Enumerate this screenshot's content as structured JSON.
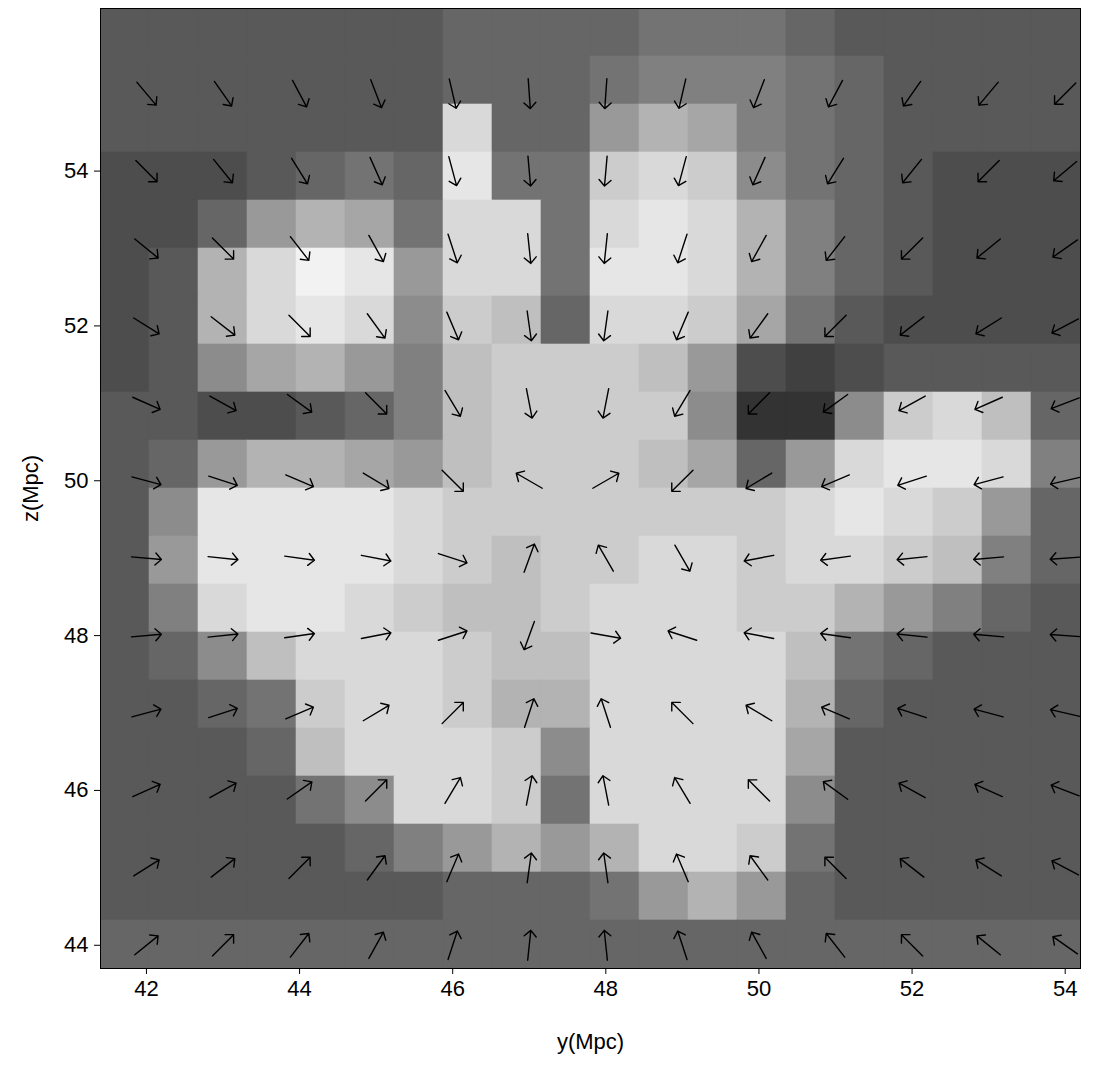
{
  "chart_data": {
    "type": "vector_field",
    "xlabel": "y(Mpc)",
    "ylabel": "z(Mpc)",
    "xlim": [
      41.4,
      54.2
    ],
    "ylim": [
      43.7,
      56.1
    ],
    "xticks": [
      42,
      44,
      46,
      48,
      50,
      52,
      54
    ],
    "yticks": [
      44,
      46,
      48,
      50,
      52,
      54
    ],
    "density": {
      "x": [
        41.72,
        42.36,
        43.0,
        43.64,
        44.28,
        44.92,
        45.56,
        46.2,
        46.84,
        47.48,
        48.12,
        48.76,
        49.4,
        50.04,
        50.68,
        51.32,
        51.96,
        52.6,
        53.24,
        53.88
      ],
      "z": [
        55.79,
        55.17,
        54.55,
        53.93,
        53.31,
        52.69,
        52.07,
        51.45,
        50.83,
        50.21,
        49.59,
        48.97,
        48.35,
        47.73,
        47.11,
        46.49,
        45.87,
        45.25,
        44.63,
        44.01
      ],
      "values": [
        [
          0.35,
          0.35,
          0.35,
          0.35,
          0.35,
          0.35,
          0.35,
          0.4,
          0.4,
          0.4,
          0.4,
          0.45,
          0.45,
          0.45,
          0.4,
          0.35,
          0.35,
          0.35,
          0.35,
          0.35
        ],
        [
          0.35,
          0.35,
          0.35,
          0.35,
          0.35,
          0.35,
          0.35,
          0.4,
          0.4,
          0.4,
          0.45,
          0.5,
          0.5,
          0.5,
          0.45,
          0.4,
          0.35,
          0.35,
          0.35,
          0.35
        ],
        [
          0.35,
          0.35,
          0.35,
          0.35,
          0.35,
          0.35,
          0.35,
          0.85,
          0.4,
          0.4,
          0.6,
          0.7,
          0.65,
          0.5,
          0.45,
          0.4,
          0.35,
          0.35,
          0.35,
          0.35
        ],
        [
          0.3,
          0.3,
          0.3,
          0.35,
          0.4,
          0.45,
          0.4,
          0.9,
          0.45,
          0.45,
          0.8,
          0.85,
          0.8,
          0.55,
          0.45,
          0.4,
          0.35,
          0.3,
          0.3,
          0.3
        ],
        [
          0.3,
          0.3,
          0.4,
          0.6,
          0.7,
          0.65,
          0.45,
          0.85,
          0.85,
          0.45,
          0.85,
          0.9,
          0.85,
          0.7,
          0.5,
          0.4,
          0.35,
          0.3,
          0.3,
          0.3
        ],
        [
          0.3,
          0.35,
          0.7,
          0.85,
          0.95,
          0.9,
          0.6,
          0.85,
          0.85,
          0.45,
          0.9,
          0.9,
          0.85,
          0.7,
          0.5,
          0.4,
          0.35,
          0.3,
          0.3,
          0.3
        ],
        [
          0.3,
          0.35,
          0.7,
          0.85,
          0.9,
          0.85,
          0.55,
          0.8,
          0.75,
          0.4,
          0.85,
          0.85,
          0.8,
          0.65,
          0.45,
          0.35,
          0.3,
          0.3,
          0.3,
          0.3
        ],
        [
          0.3,
          0.35,
          0.55,
          0.65,
          0.7,
          0.6,
          0.5,
          0.75,
          0.8,
          0.8,
          0.8,
          0.75,
          0.6,
          0.3,
          0.25,
          0.3,
          0.35,
          0.35,
          0.35,
          0.35
        ],
        [
          0.35,
          0.35,
          0.3,
          0.3,
          0.35,
          0.4,
          0.5,
          0.75,
          0.8,
          0.8,
          0.8,
          0.8,
          0.55,
          0.2,
          0.2,
          0.55,
          0.8,
          0.85,
          0.75,
          0.4
        ],
        [
          0.35,
          0.4,
          0.6,
          0.7,
          0.7,
          0.65,
          0.6,
          0.75,
          0.8,
          0.8,
          0.8,
          0.75,
          0.65,
          0.4,
          0.6,
          0.85,
          0.9,
          0.9,
          0.85,
          0.5
        ],
        [
          0.35,
          0.55,
          0.9,
          0.9,
          0.9,
          0.9,
          0.85,
          0.8,
          0.8,
          0.8,
          0.8,
          0.8,
          0.8,
          0.8,
          0.85,
          0.9,
          0.85,
          0.8,
          0.6,
          0.4
        ],
        [
          0.35,
          0.6,
          0.9,
          0.9,
          0.9,
          0.9,
          0.85,
          0.8,
          0.75,
          0.8,
          0.8,
          0.85,
          0.85,
          0.8,
          0.85,
          0.85,
          0.8,
          0.75,
          0.5,
          0.4
        ],
        [
          0.35,
          0.5,
          0.85,
          0.9,
          0.9,
          0.85,
          0.8,
          0.75,
          0.75,
          0.8,
          0.85,
          0.85,
          0.85,
          0.8,
          0.8,
          0.7,
          0.6,
          0.5,
          0.4,
          0.35
        ],
        [
          0.35,
          0.4,
          0.55,
          0.75,
          0.85,
          0.85,
          0.85,
          0.8,
          0.75,
          0.75,
          0.85,
          0.85,
          0.85,
          0.85,
          0.75,
          0.45,
          0.4,
          0.35,
          0.35,
          0.35
        ],
        [
          0.35,
          0.35,
          0.4,
          0.45,
          0.8,
          0.85,
          0.85,
          0.8,
          0.7,
          0.7,
          0.85,
          0.85,
          0.85,
          0.85,
          0.7,
          0.4,
          0.35,
          0.35,
          0.35,
          0.35
        ],
        [
          0.35,
          0.35,
          0.35,
          0.4,
          0.75,
          0.85,
          0.85,
          0.85,
          0.8,
          0.55,
          0.85,
          0.85,
          0.85,
          0.85,
          0.65,
          0.35,
          0.35,
          0.35,
          0.35,
          0.35
        ],
        [
          0.35,
          0.35,
          0.35,
          0.35,
          0.45,
          0.55,
          0.85,
          0.85,
          0.8,
          0.45,
          0.85,
          0.85,
          0.85,
          0.85,
          0.55,
          0.35,
          0.35,
          0.35,
          0.35,
          0.35
        ],
        [
          0.35,
          0.35,
          0.35,
          0.35,
          0.35,
          0.4,
          0.5,
          0.6,
          0.7,
          0.6,
          0.7,
          0.85,
          0.85,
          0.8,
          0.45,
          0.35,
          0.35,
          0.35,
          0.35,
          0.35
        ],
        [
          0.35,
          0.35,
          0.35,
          0.35,
          0.35,
          0.35,
          0.35,
          0.4,
          0.4,
          0.4,
          0.45,
          0.6,
          0.7,
          0.6,
          0.4,
          0.35,
          0.35,
          0.35,
          0.35,
          0.35
        ],
        [
          0.4,
          0.4,
          0.4,
          0.4,
          0.4,
          0.4,
          0.4,
          0.4,
          0.4,
          0.4,
          0.4,
          0.4,
          0.4,
          0.4,
          0.4,
          0.4,
          0.4,
          0.4,
          0.4,
          0.4
        ]
      ]
    },
    "vectors": {
      "x": [
        42,
        43,
        44,
        45,
        46,
        47,
        48,
        49,
        50,
        51,
        52,
        53,
        54
      ],
      "z": [
        55,
        54,
        53,
        52,
        51,
        50,
        49,
        48,
        47,
        46,
        45,
        44
      ],
      "angle": [
        [
          140,
          145,
          152,
          159,
          167,
          176,
          184,
          193,
          201,
          208,
          215,
          220,
          225
        ],
        [
          135,
          141,
          148,
          156,
          165,
          175,
          185,
          195,
          204,
          212,
          219,
          225,
          230
        ],
        [
          129,
          135,
          142,
          151,
          162,
          174,
          186,
          198,
          209,
          218,
          225,
          231,
          235
        ],
        [
          122,
          128,
          135,
          144,
          157,
          172,
          188,
          203,
          216,
          225,
          232,
          238,
          242
        ],
        [
          114,
          119,
          126,
          135,
          149,
          169,
          191,
          211,
          225,
          234,
          241,
          246,
          249
        ],
        [
          105,
          108,
          113,
          121,
          135,
          300,
          60,
          225,
          239,
          247,
          252,
          255,
          257
        ],
        [
          95,
          96,
          98,
          101,
          108,
          20,
          330,
          150,
          259,
          262,
          264,
          265,
          266
        ],
        [
          85,
          84,
          82,
          79,
          72,
          200,
          100,
          288,
          281,
          278,
          276,
          275,
          274
        ],
        [
          75,
          72,
          67,
          59,
          45,
          18,
          342,
          315,
          301,
          293,
          288,
          285,
          283
        ],
        [
          66,
          61,
          55,
          45,
          31,
          11,
          349,
          329,
          315,
          306,
          299,
          294,
          291
        ],
        [
          58,
          52,
          45,
          36,
          23,
          8,
          352,
          337,
          324,
          315,
          308,
          302,
          298
        ],
        [
          51,
          45,
          38,
          29,
          18,
          6,
          354,
          342,
          331,
          322,
          315,
          309,
          305
        ]
      ]
    }
  }
}
